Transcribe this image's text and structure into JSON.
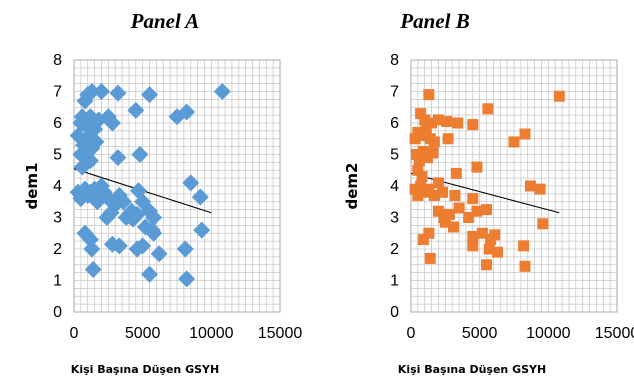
{
  "chart_data": [
    {
      "type": "scatter",
      "title": "Panel A",
      "xlabel": "Kişi Başına Düşen GSYH",
      "ylabel": "dem1",
      "xlim": [
        0,
        15000
      ],
      "ylim": [
        0,
        8
      ],
      "xticks": [
        "0",
        "5000",
        "10000",
        "15000"
      ],
      "yticks": [
        "0",
        "1",
        "2",
        "3",
        "4",
        "5",
        "6",
        "7",
        "8"
      ],
      "grid": true,
      "marker": "diamond",
      "color": "#5B9BD5",
      "trendline": {
        "x": [
          0,
          10000
        ],
        "y": [
          4.55,
          3.15
        ]
      },
      "points": [
        [
          300,
          5.6
        ],
        [
          500,
          6.0
        ],
        [
          800,
          6.7
        ],
        [
          1000,
          6.9
        ],
        [
          1300,
          7.0
        ],
        [
          2000,
          7.0
        ],
        [
          3200,
          6.95
        ],
        [
          5500,
          6.9
        ],
        [
          10800,
          7.0
        ],
        [
          600,
          6.2
        ],
        [
          900,
          5.9
        ],
        [
          1200,
          6.2
        ],
        [
          1500,
          5.8
        ],
        [
          1800,
          6.1
        ],
        [
          2500,
          6.2
        ],
        [
          2800,
          6.0
        ],
        [
          4500,
          6.4
        ],
        [
          7500,
          6.2
        ],
        [
          8200,
          6.35
        ],
        [
          500,
          5.0
        ],
        [
          700,
          5.3
        ],
        [
          1000,
          5.5
        ],
        [
          1300,
          5.2
        ],
        [
          1600,
          5.4
        ],
        [
          900,
          4.9
        ],
        [
          1200,
          4.8
        ],
        [
          600,
          4.6
        ],
        [
          3200,
          4.9
        ],
        [
          4800,
          5.0
        ],
        [
          300,
          3.8
        ],
        [
          500,
          3.6
        ],
        [
          800,
          3.9
        ],
        [
          1000,
          3.7
        ],
        [
          1200,
          3.8
        ],
        [
          1500,
          3.9
        ],
        [
          1700,
          3.5
        ],
        [
          2000,
          4.0
        ],
        [
          2200,
          3.8
        ],
        [
          2500,
          3.6
        ],
        [
          3000,
          3.4
        ],
        [
          3300,
          3.7
        ],
        [
          3600,
          3.5
        ],
        [
          4200,
          3.2
        ],
        [
          4700,
          3.85
        ],
        [
          5000,
          3.5
        ],
        [
          5500,
          3.2
        ],
        [
          5800,
          3.0
        ],
        [
          8500,
          4.1
        ],
        [
          9200,
          3.65
        ],
        [
          2400,
          3.0
        ],
        [
          2700,
          3.15
        ],
        [
          3800,
          3.0
        ],
        [
          4300,
          2.95
        ],
        [
          4600,
          3.1
        ],
        [
          5200,
          2.7
        ],
        [
          5800,
          2.5
        ],
        [
          800,
          2.5
        ],
        [
          1200,
          2.3
        ],
        [
          2800,
          2.15
        ],
        [
          3300,
          2.1
        ],
        [
          4600,
          2.0
        ],
        [
          5000,
          2.1
        ],
        [
          5700,
          2.6
        ],
        [
          8100,
          2.0
        ],
        [
          9300,
          2.6
        ],
        [
          1300,
          2.0
        ],
        [
          1400,
          1.35
        ],
        [
          5500,
          1.2
        ],
        [
          6200,
          1.85
        ],
        [
          8200,
          1.05
        ]
      ]
    },
    {
      "type": "scatter",
      "title": "Panel B",
      "xlabel": "Kişi Başına Düşen GSYH",
      "ylabel": "dem2",
      "xlim": [
        0,
        15000
      ],
      "ylim": [
        0,
        8
      ],
      "xticks": [
        "0",
        "5000",
        "10000",
        "15000"
      ],
      "yticks": [
        "0",
        "1",
        "2",
        "3",
        "4",
        "5",
        "6",
        "7",
        "8"
      ],
      "grid": true,
      "marker": "square",
      "color": "#ED7D31",
      "trendline": {
        "x": [
          0,
          10800
        ],
        "y": [
          4.4,
          3.15
        ]
      },
      "points": [
        [
          1300,
          6.9
        ],
        [
          10800,
          6.85
        ],
        [
          5600,
          6.45
        ],
        [
          700,
          6.3
        ],
        [
          1000,
          6.1
        ],
        [
          1500,
          6.0
        ],
        [
          2000,
          6.1
        ],
        [
          2600,
          6.05
        ],
        [
          3400,
          6.0
        ],
        [
          4500,
          5.95
        ],
        [
          300,
          5.5
        ],
        [
          500,
          5.7
        ],
        [
          800,
          5.6
        ],
        [
          1100,
          5.8
        ],
        [
          1400,
          5.5
        ],
        [
          1700,
          5.4
        ],
        [
          2700,
          5.5
        ],
        [
          7500,
          5.4
        ],
        [
          8300,
          5.65
        ],
        [
          400,
          5.0
        ],
        [
          600,
          4.8
        ],
        [
          900,
          5.1
        ],
        [
          1200,
          4.9
        ],
        [
          1600,
          5.05
        ],
        [
          500,
          4.5
        ],
        [
          800,
          4.3
        ],
        [
          3300,
          4.4
        ],
        [
          4800,
          4.6
        ],
        [
          300,
          3.9
        ],
        [
          500,
          3.7
        ],
        [
          700,
          4.0
        ],
        [
          1000,
          3.8
        ],
        [
          1300,
          3.9
        ],
        [
          1700,
          3.7
        ],
        [
          2000,
          4.1
        ],
        [
          2300,
          3.8
        ],
        [
          3200,
          3.7
        ],
        [
          4500,
          3.6
        ],
        [
          8700,
          4.0
        ],
        [
          9400,
          3.9
        ],
        [
          2000,
          3.2
        ],
        [
          2400,
          3.0
        ],
        [
          2800,
          3.1
        ],
        [
          3500,
          3.3
        ],
        [
          4200,
          3.0
        ],
        [
          4800,
          3.2
        ],
        [
          5500,
          3.25
        ],
        [
          2500,
          2.85
        ],
        [
          3100,
          2.7
        ],
        [
          4500,
          2.4
        ],
        [
          5200,
          2.5
        ],
        [
          5800,
          2.3
        ],
        [
          6100,
          2.45
        ],
        [
          9600,
          2.8
        ],
        [
          900,
          2.3
        ],
        [
          1300,
          2.5
        ],
        [
          4500,
          2.1
        ],
        [
          5700,
          2.0
        ],
        [
          6300,
          1.9
        ],
        [
          8200,
          2.1
        ],
        [
          1400,
          1.7
        ],
        [
          5500,
          1.5
        ],
        [
          8300,
          1.45
        ]
      ]
    }
  ]
}
